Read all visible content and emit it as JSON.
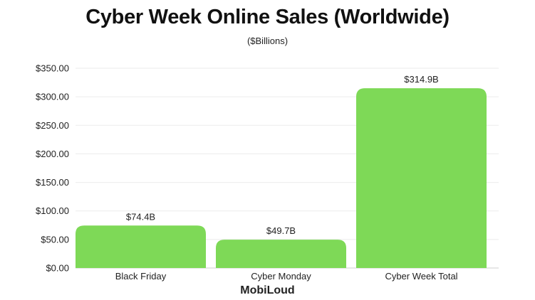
{
  "chart_data": {
    "type": "bar",
    "title": "Cyber Week Online Sales (Worldwide)",
    "subtitle": "($Billions)",
    "categories": [
      "Black Friday",
      "Cyber Monday",
      "Cyber Week Total"
    ],
    "values": [
      74.4,
      49.7,
      314.9
    ],
    "data_labels": [
      "$74.4B",
      "$49.7B",
      "$314.9B"
    ],
    "xlabel": "",
    "ylabel": "",
    "ylim": [
      0,
      350
    ],
    "yticks": [
      0,
      50,
      100,
      150,
      200,
      250,
      300,
      350
    ],
    "ytick_labels": [
      "$0.00",
      "$50.00",
      "$100.00",
      "$150.00",
      "$200.00",
      "$250.00",
      "$300.00",
      "$350.00"
    ],
    "grid": true,
    "legend": "none",
    "bar_color": "#7ed957"
  },
  "branding": {
    "logo": "MobiLoud"
  }
}
